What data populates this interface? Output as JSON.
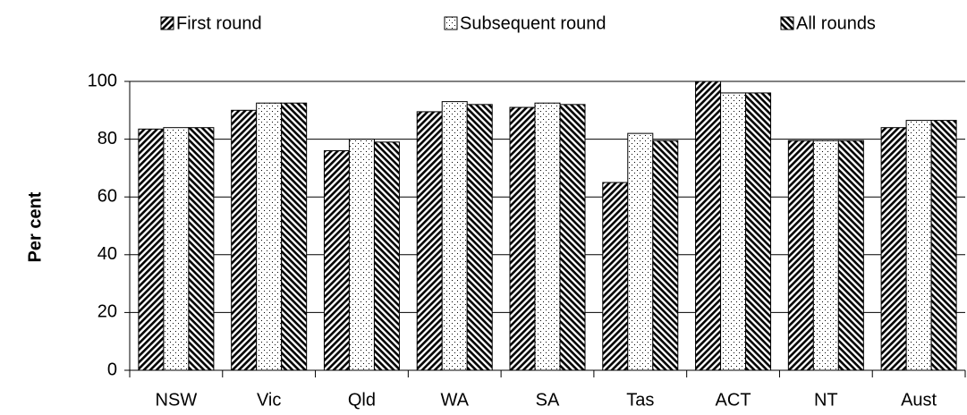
{
  "chart_data": {
    "type": "bar",
    "y_label": "Per cent",
    "categories": [
      "NSW",
      "Vic",
      "Qld",
      "WA",
      "SA",
      "Tas",
      "ACT",
      "NT",
      "Aust"
    ],
    "series": [
      {
        "name": "First round",
        "color": "#000000",
        "pattern": "backslash",
        "values": [
          83.5,
          90,
          76,
          89.5,
          91,
          65,
          100,
          79.5,
          84
        ]
      },
      {
        "name": "Subsequent round",
        "color": "#000000",
        "pattern": "dots",
        "values": [
          84,
          92.5,
          80,
          93,
          92.5,
          82,
          96,
          79.5,
          86.5
        ]
      },
      {
        "name": "All rounds",
        "color": "#000000",
        "pattern": "slash",
        "values": [
          84,
          92.5,
          79,
          92,
          92,
          79.5,
          96,
          79.5,
          86.5
        ]
      }
    ],
    "ylim": [
      0,
      100
    ],
    "yticks": [
      0,
      20,
      40,
      60,
      80,
      100
    ],
    "grid": true,
    "legend": "top"
  }
}
